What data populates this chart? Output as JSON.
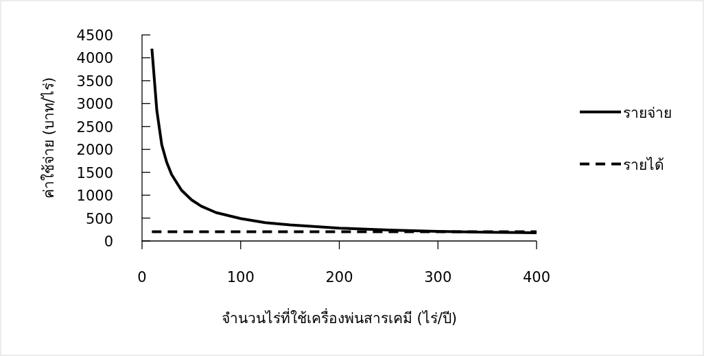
{
  "chart_data": {
    "type": "line",
    "xlabel": "จำนวนไร่ที่ใช้เครื่องพ่นสารเคมี (ไร่/ปี)",
    "ylabel": "ค่าใช้จ่าย (บาท/ไร่)",
    "xlim": [
      0,
      400
    ],
    "xticks": [
      0,
      100,
      200,
      300,
      400
    ],
    "ylim": [
      0,
      4500
    ],
    "yticks": [
      0,
      500,
      1000,
      1500,
      2000,
      2500,
      3000,
      3500,
      4000,
      4500
    ],
    "grid": false,
    "legend": "right",
    "series": [
      {
        "name": "รายจ่าย",
        "color": "#000000",
        "line_style": "solid",
        "x": [
          10,
          15,
          20,
          25,
          30,
          40,
          50,
          60,
          75,
          100,
          125,
          150,
          200,
          250,
          300,
          350,
          400
        ],
        "values": [
          4200,
          2850,
          2100,
          1720,
          1450,
          1110,
          900,
          760,
          620,
          490,
          400,
          350,
          280,
          240,
          210,
          190,
          180
        ]
      },
      {
        "name": "รายได้",
        "color": "#000000",
        "line_style": "dashed",
        "x": [
          10,
          400
        ],
        "values": [
          200,
          200
        ]
      }
    ]
  }
}
